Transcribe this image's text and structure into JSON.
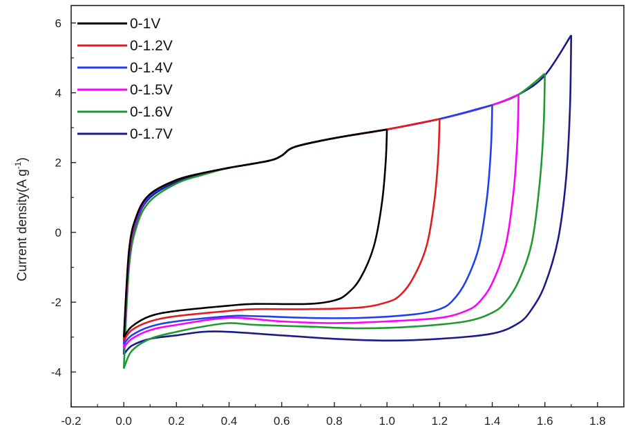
{
  "chart_data": {
    "type": "line",
    "title": "",
    "xlabel": "",
    "ylabel": "Current density(A g",
    "ylabel_sup": "-1",
    "ylabel_close": ")",
    "xlim": [
      -0.2,
      1.9
    ],
    "ylim": [
      -5,
      6.5
    ],
    "xticks": [
      -0.2,
      0.0,
      0.2,
      0.4,
      0.6,
      0.8,
      1.0,
      1.2,
      1.4,
      1.6,
      1.8
    ],
    "xtick_labels": [
      "-0.2",
      "0.0",
      "0.2",
      "0.4",
      "0.6",
      "0.8",
      "1.0",
      "1.2",
      "1.4",
      "1.6",
      "1.8"
    ],
    "yticks": [
      -4,
      -2,
      0,
      2,
      4,
      6
    ],
    "ytick_labels": [
      "-4",
      "-2",
      "0",
      "2",
      "4",
      "6"
    ],
    "legend_position": "top-left",
    "series": [
      {
        "name": "0-1V",
        "color": "#000000",
        "vmax": 1.0,
        "anodic": [
          [
            0,
            -3.0
          ],
          [
            0.02,
            -0.5
          ],
          [
            0.05,
            0.5
          ],
          [
            0.1,
            1.1
          ],
          [
            0.2,
            1.5
          ],
          [
            0.3,
            1.7
          ],
          [
            0.4,
            1.85
          ],
          [
            0.55,
            2.05
          ],
          [
            0.6,
            2.2
          ],
          [
            0.65,
            2.45
          ],
          [
            0.8,
            2.7
          ],
          [
            1.0,
            2.95
          ]
        ],
        "cathodic": [
          [
            1.0,
            2.95
          ],
          [
            0.995,
            2.0
          ],
          [
            0.98,
            0.8
          ],
          [
            0.95,
            -0.4
          ],
          [
            0.9,
            -1.3
          ],
          [
            0.85,
            -1.75
          ],
          [
            0.8,
            -1.95
          ],
          [
            0.7,
            -2.05
          ],
          [
            0.5,
            -2.05
          ],
          [
            0.4,
            -2.1
          ],
          [
            0.2,
            -2.25
          ],
          [
            0.1,
            -2.4
          ],
          [
            0.03,
            -2.7
          ],
          [
            0,
            -3.0
          ]
        ]
      },
      {
        "name": "0-1.2V",
        "color": "#e41a1c",
        "vmax": 1.2,
        "anodic": [
          [
            0,
            -3.1
          ],
          [
            0.02,
            -0.6
          ],
          [
            0.05,
            0.5
          ],
          [
            0.1,
            1.1
          ],
          [
            0.2,
            1.5
          ],
          [
            0.3,
            1.7
          ],
          [
            0.4,
            1.85
          ],
          [
            0.55,
            2.05
          ],
          [
            0.6,
            2.2
          ],
          [
            0.65,
            2.45
          ],
          [
            0.8,
            2.7
          ],
          [
            1.0,
            2.95
          ],
          [
            1.2,
            3.25
          ]
        ],
        "cathodic": [
          [
            1.2,
            3.25
          ],
          [
            1.195,
            2.2
          ],
          [
            1.18,
            0.9
          ],
          [
            1.15,
            -0.4
          ],
          [
            1.1,
            -1.3
          ],
          [
            1.05,
            -1.8
          ],
          [
            1.0,
            -2.0
          ],
          [
            0.9,
            -2.15
          ],
          [
            0.7,
            -2.2
          ],
          [
            0.5,
            -2.2
          ],
          [
            0.4,
            -2.25
          ],
          [
            0.2,
            -2.4
          ],
          [
            0.1,
            -2.55
          ],
          [
            0.03,
            -2.8
          ],
          [
            0,
            -3.1
          ]
        ]
      },
      {
        "name": "0-1.4V",
        "color": "#1f3ff0",
        "vmax": 1.4,
        "anodic": [
          [
            0,
            -3.2
          ],
          [
            0.02,
            -0.7
          ],
          [
            0.05,
            0.45
          ],
          [
            0.1,
            1.05
          ],
          [
            0.2,
            1.5
          ],
          [
            0.3,
            1.7
          ],
          [
            0.4,
            1.85
          ],
          [
            0.55,
            2.05
          ],
          [
            0.6,
            2.2
          ],
          [
            0.65,
            2.45
          ],
          [
            0.8,
            2.7
          ],
          [
            1.0,
            2.95
          ],
          [
            1.2,
            3.25
          ],
          [
            1.4,
            3.65
          ]
        ],
        "cathodic": [
          [
            1.4,
            3.65
          ],
          [
            1.395,
            2.4
          ],
          [
            1.38,
            1.0
          ],
          [
            1.35,
            -0.4
          ],
          [
            1.3,
            -1.4
          ],
          [
            1.25,
            -1.95
          ],
          [
            1.2,
            -2.2
          ],
          [
            1.1,
            -2.35
          ],
          [
            0.9,
            -2.45
          ],
          [
            0.7,
            -2.45
          ],
          [
            0.5,
            -2.4
          ],
          [
            0.4,
            -2.4
          ],
          [
            0.2,
            -2.55
          ],
          [
            0.1,
            -2.7
          ],
          [
            0.03,
            -2.95
          ],
          [
            0,
            -3.2
          ]
        ]
      },
      {
        "name": "0-1.5V",
        "color": "#ff00ff",
        "vmax": 1.5,
        "anodic": [
          [
            0,
            -3.3
          ],
          [
            0.02,
            -0.75
          ],
          [
            0.05,
            0.4
          ],
          [
            0.1,
            1.05
          ],
          [
            0.2,
            1.5
          ],
          [
            0.3,
            1.7
          ],
          [
            0.4,
            1.85
          ],
          [
            0.55,
            2.05
          ],
          [
            0.6,
            2.2
          ],
          [
            0.65,
            2.45
          ],
          [
            0.8,
            2.7
          ],
          [
            1.0,
            2.95
          ],
          [
            1.2,
            3.25
          ],
          [
            1.4,
            3.65
          ],
          [
            1.5,
            3.95
          ]
        ],
        "cathodic": [
          [
            1.5,
            3.95
          ],
          [
            1.495,
            2.6
          ],
          [
            1.48,
            1.1
          ],
          [
            1.45,
            -0.4
          ],
          [
            1.4,
            -1.45
          ],
          [
            1.35,
            -2.0
          ],
          [
            1.3,
            -2.25
          ],
          [
            1.2,
            -2.45
          ],
          [
            1.0,
            -2.55
          ],
          [
            0.8,
            -2.6
          ],
          [
            0.6,
            -2.55
          ],
          [
            0.4,
            -2.45
          ],
          [
            0.2,
            -2.65
          ],
          [
            0.1,
            -2.8
          ],
          [
            0.03,
            -3.05
          ],
          [
            0,
            -3.3
          ]
        ]
      },
      {
        "name": "0-1.6V",
        "color": "#1f9a33",
        "vmax": 1.6,
        "anodic": [
          [
            0,
            -3.9
          ],
          [
            0.02,
            -1.0
          ],
          [
            0.05,
            0.2
          ],
          [
            0.1,
            0.9
          ],
          [
            0.2,
            1.4
          ],
          [
            0.3,
            1.65
          ],
          [
            0.4,
            1.85
          ],
          [
            0.55,
            2.05
          ],
          [
            0.6,
            2.2
          ],
          [
            0.65,
            2.45
          ],
          [
            0.8,
            2.7
          ],
          [
            1.0,
            2.95
          ],
          [
            1.2,
            3.25
          ],
          [
            1.4,
            3.65
          ],
          [
            1.5,
            3.95
          ],
          [
            1.6,
            4.55
          ]
        ],
        "cathodic": [
          [
            1.6,
            4.55
          ],
          [
            1.595,
            3.0
          ],
          [
            1.58,
            1.4
          ],
          [
            1.55,
            -0.3
          ],
          [
            1.5,
            -1.4
          ],
          [
            1.45,
            -2.0
          ],
          [
            1.4,
            -2.3
          ],
          [
            1.3,
            -2.55
          ],
          [
            1.1,
            -2.7
          ],
          [
            0.9,
            -2.75
          ],
          [
            0.7,
            -2.7
          ],
          [
            0.5,
            -2.65
          ],
          [
            0.4,
            -2.6
          ],
          [
            0.3,
            -2.7
          ],
          [
            0.2,
            -2.85
          ],
          [
            0.1,
            -3.05
          ],
          [
            0.03,
            -3.4
          ],
          [
            0,
            -3.9
          ]
        ]
      },
      {
        "name": "0-1.7V",
        "color": "#1a1a8c",
        "vmax": 1.7,
        "anodic": [
          [
            0,
            -3.5
          ],
          [
            0.02,
            -0.8
          ],
          [
            0.05,
            0.35
          ],
          [
            0.1,
            1.0
          ],
          [
            0.2,
            1.45
          ],
          [
            0.3,
            1.68
          ],
          [
            0.4,
            1.85
          ],
          [
            0.55,
            2.05
          ],
          [
            0.6,
            2.2
          ],
          [
            0.65,
            2.45
          ],
          [
            0.8,
            2.7
          ],
          [
            1.0,
            2.95
          ],
          [
            1.2,
            3.25
          ],
          [
            1.4,
            3.65
          ],
          [
            1.5,
            3.95
          ],
          [
            1.6,
            4.5
          ],
          [
            1.7,
            5.65
          ]
        ],
        "cathodic": [
          [
            1.7,
            5.65
          ],
          [
            1.695,
            3.5
          ],
          [
            1.68,
            1.5
          ],
          [
            1.65,
            -0.2
          ],
          [
            1.6,
            -1.5
          ],
          [
            1.55,
            -2.2
          ],
          [
            1.5,
            -2.6
          ],
          [
            1.4,
            -2.9
          ],
          [
            1.2,
            -3.05
          ],
          [
            1.0,
            -3.1
          ],
          [
            0.8,
            -3.05
          ],
          [
            0.6,
            -2.95
          ],
          [
            0.4,
            -2.85
          ],
          [
            0.3,
            -2.85
          ],
          [
            0.2,
            -2.95
          ],
          [
            0.1,
            -3.05
          ],
          [
            0.03,
            -3.25
          ],
          [
            0,
            -3.5
          ]
        ]
      }
    ]
  }
}
